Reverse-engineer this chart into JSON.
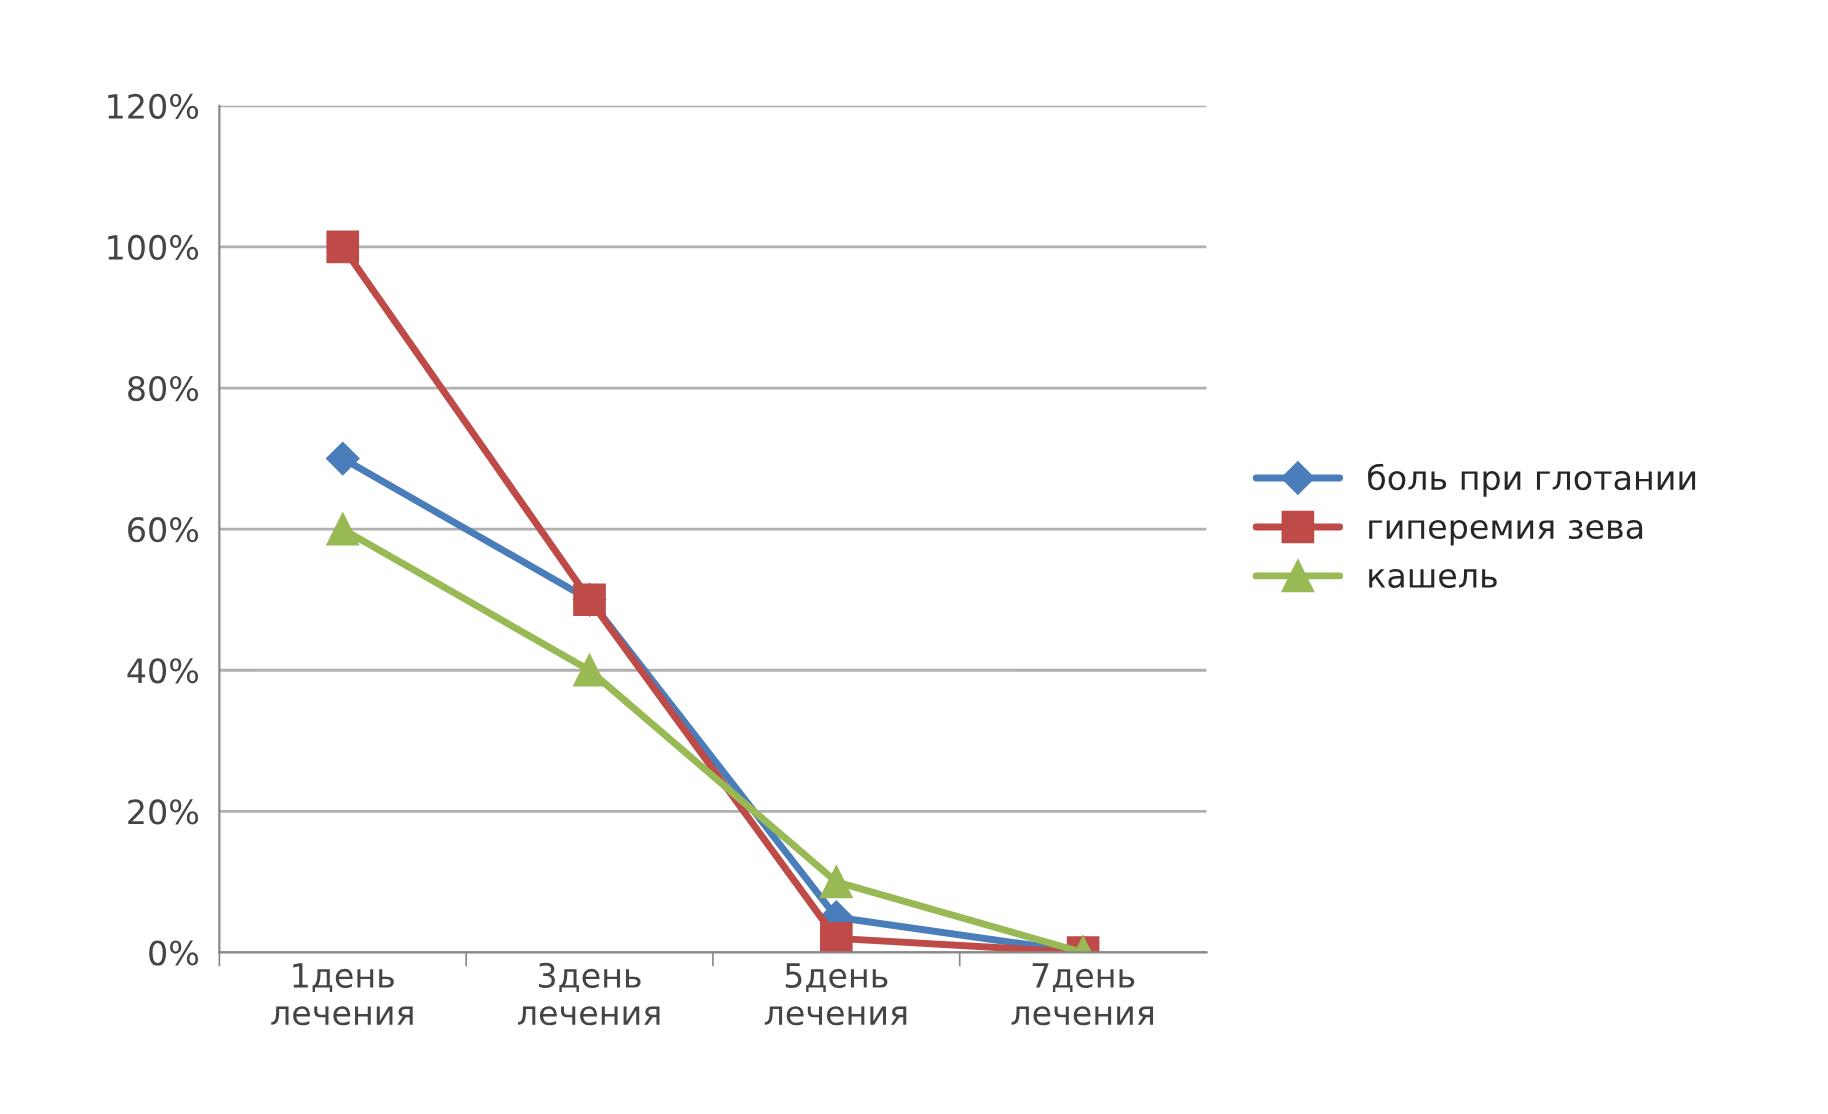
{
  "chart_data": {
    "type": "line",
    "categories": [
      "1день\nлечения",
      "3день\nлечения",
      "5день\nлечения",
      "7день\nлечения"
    ],
    "series": [
      {
        "name": "боль при глотании",
        "color": "#4a7ebb",
        "values": [
          70,
          50,
          5,
          0
        ],
        "marker": "diamond"
      },
      {
        "name": "гиперемия зева",
        "color": "#be4b48",
        "values": [
          100,
          50,
          2,
          0
        ],
        "marker": "square"
      },
      {
        "name": "кашель",
        "color": "#98b954",
        "values": [
          60,
          40,
          10,
          0
        ],
        "marker": "triangle"
      }
    ],
    "ylim": [
      0,
      120
    ],
    "yticks": [
      {
        "value": 0,
        "label": "0%"
      },
      {
        "value": 20,
        "label": "20%"
      },
      {
        "value": 40,
        "label": "40%"
      },
      {
        "value": 60,
        "label": "60%"
      },
      {
        "value": 80,
        "label": "80%"
      },
      {
        "value": 100,
        "label": "100%"
      },
      {
        "value": 120,
        "label": "120%"
      }
    ],
    "grid": "y",
    "legend": "right"
  }
}
